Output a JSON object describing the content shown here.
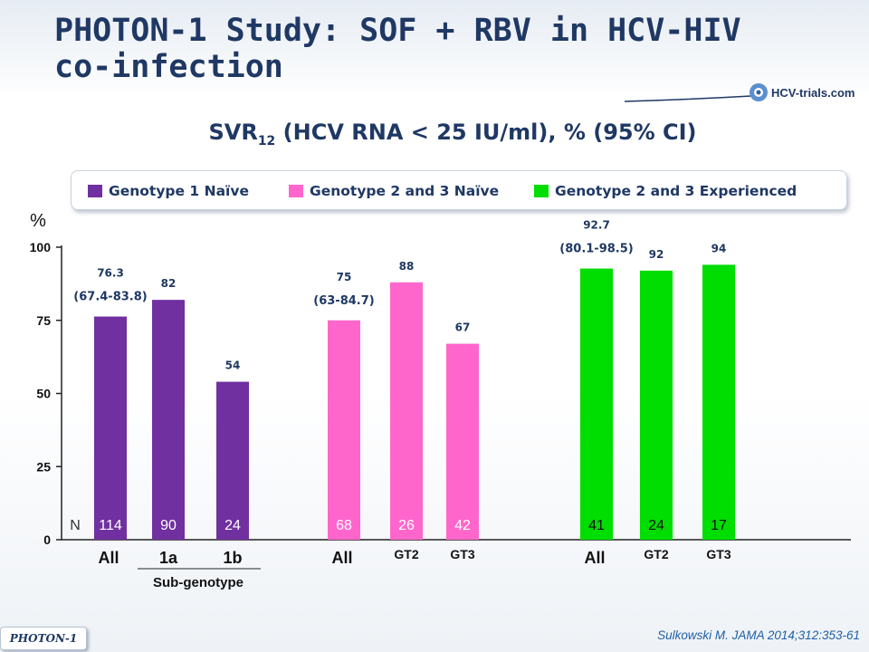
{
  "slide": {
    "title": "PHOTON-1 Study: SOF + RBV in HCV-HIV co-infection",
    "subtitle_main": "SVR",
    "subtitle_sub": "12",
    "subtitle_rest": " (HCV RNA < 25 IU/ml), % (95% CI)",
    "logo_text": "HCV-trials.com",
    "footer_tag": "PHOTON-1",
    "citation": "Sulkowski M. JAMA 2014;312:353-61"
  },
  "legend": [
    {
      "label": "Genotype 1 Naïve",
      "color": "#7030a0"
    },
    {
      "label": "Genotype 2 and 3 Naïve",
      "color": "#ff66cc"
    },
    {
      "label": "Genotype 2 and 3 Experienced",
      "color": "#00dd00"
    }
  ],
  "chart_data": {
    "type": "bar",
    "ylabel": "%",
    "ylim": [
      0,
      100
    ],
    "yticks": [
      "0",
      "25",
      "50",
      "75",
      "100"
    ],
    "n_label": "N",
    "subgenotype_label": "Sub-genotype",
    "bars": [
      {
        "group": "Genotype 1 Naïve",
        "category": "All",
        "value": 76.3,
        "label": "76.3",
        "ci": "(67.4-83.8)",
        "n": "114",
        "color": "#7030a0"
      },
      {
        "group": "Genotype 1 Naïve",
        "category": "1a",
        "value": 82,
        "label": "82",
        "ci": "",
        "n": "90",
        "color": "#7030a0"
      },
      {
        "group": "Genotype 1 Naïve",
        "category": "1b",
        "value": 54,
        "label": "54",
        "ci": "",
        "n": "24",
        "color": "#7030a0"
      },
      {
        "group": "Genotype 2 and 3 Naïve",
        "category": "All",
        "value": 75,
        "label": "75",
        "ci": "(63-84.7)",
        "n": "68",
        "color": "#ff66cc"
      },
      {
        "group": "Genotype 2 and 3 Naïve",
        "category": "GT2",
        "value": 88,
        "label": "88",
        "ci": "",
        "n": "26",
        "color": "#ff66cc"
      },
      {
        "group": "Genotype 2 and 3 Naïve",
        "category": "GT3",
        "value": 67,
        "label": "67",
        "ci": "",
        "n": "42",
        "color": "#ff66cc"
      },
      {
        "group": "Genotype 2 and 3 Experienced",
        "category": "All",
        "value": 92.7,
        "label": "92.7",
        "ci": "(80.1-98.5)",
        "n": "41",
        "color": "#00dd00"
      },
      {
        "group": "Genotype 2 and 3 Experienced",
        "category": "GT2",
        "value": 92,
        "label": "92",
        "ci": "",
        "n": "24",
        "color": "#00dd00"
      },
      {
        "group": "Genotype 2 and 3 Experienced",
        "category": "GT3",
        "value": 94,
        "label": "94",
        "ci": "",
        "n": "17",
        "color": "#00dd00"
      }
    ]
  }
}
